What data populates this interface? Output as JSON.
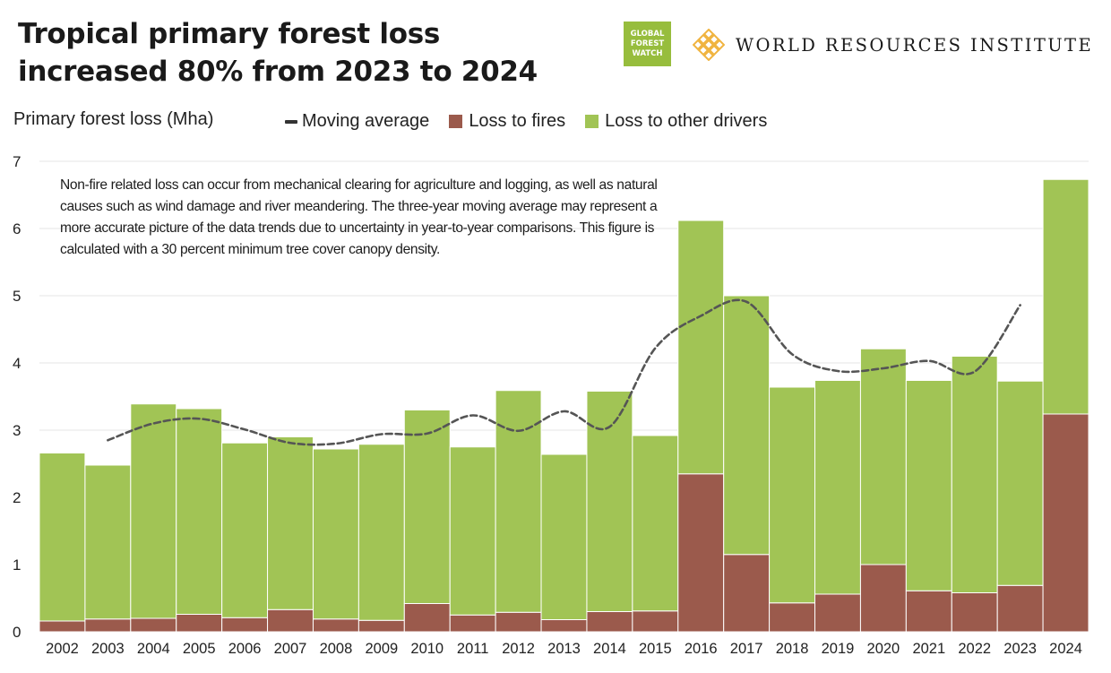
{
  "header": {
    "title_line1": "Tropical primary forest loss",
    "title_line2": "increased 80% from 2023 to 2024",
    "gfw_logo_lines": [
      "GLOBAL",
      "FOREST",
      "WATCH"
    ],
    "wri_logo_text": "WORLD RESOURCES INSTITUTE"
  },
  "colors": {
    "fires": "#9b5a4c",
    "other": "#a1c455",
    "moving_average": "#555555",
    "gfw_green": "#97bd3d",
    "wri_gold": "#f0b440"
  },
  "note": "Non-fire related loss can occur from mechanical clearing for agriculture and logging, as well as natural causes such as wind damage and river meandering. The three-year moving average may represent a more accurate picture of the data trends due to uncertainty in year-to-year comparisons. This figure is calculated with a 30 percent minimum tree cover canopy density.",
  "chart_data": {
    "type": "bar",
    "stacked": true,
    "title": "Tropical primary forest loss increased 80% from 2023 to 2024",
    "ylabel": "Primary forest loss (Mha)",
    "xlabel": "",
    "ylim": [
      0,
      7
    ],
    "yticks": [
      0,
      1,
      2,
      3,
      4,
      5,
      6,
      7
    ],
    "grid": true,
    "legend_position": "top",
    "categories": [
      "2002",
      "2003",
      "2004",
      "2005",
      "2006",
      "2007",
      "2008",
      "2009",
      "2010",
      "2011",
      "2012",
      "2013",
      "2014",
      "2015",
      "2016",
      "2017",
      "2018",
      "2019",
      "2020",
      "2021",
      "2022",
      "2023",
      "2024"
    ],
    "series": [
      {
        "name": "Loss to fires",
        "color": "#9b5a4c",
        "values": [
          0.16,
          0.19,
          0.2,
          0.26,
          0.21,
          0.33,
          0.19,
          0.17,
          0.42,
          0.25,
          0.29,
          0.18,
          0.3,
          0.31,
          2.35,
          1.15,
          0.43,
          0.56,
          1.0,
          0.61,
          0.58,
          0.69,
          3.24
        ]
      },
      {
        "name": "Loss to other drivers",
        "color": "#a1c455",
        "values": [
          2.5,
          2.29,
          3.19,
          3.06,
          2.6,
          2.57,
          2.53,
          2.62,
          2.88,
          2.5,
          3.3,
          2.46,
          3.28,
          2.61,
          3.77,
          3.85,
          3.21,
          3.18,
          3.21,
          3.13,
          3.52,
          3.04,
          3.49
        ]
      },
      {
        "name": "Moving average",
        "type": "line",
        "color": "#555555",
        "values": [
          null,
          2.85,
          3.1,
          3.17,
          3.01,
          2.81,
          2.8,
          2.94,
          2.95,
          3.22,
          2.99,
          3.28,
          3.05,
          4.22,
          4.7,
          4.91,
          4.13,
          3.88,
          3.92,
          4.03,
          3.87,
          4.86,
          null
        ]
      }
    ]
  }
}
